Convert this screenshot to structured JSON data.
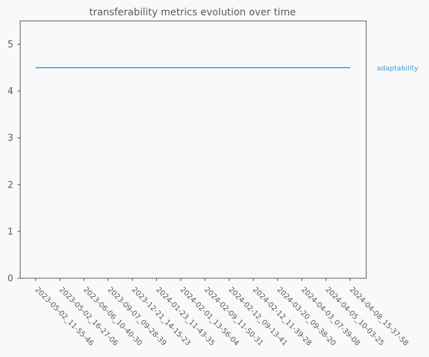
{
  "chart_data": {
    "type": "line",
    "title": "transferability metrics evolution over time",
    "xlabel": "",
    "ylabel": "",
    "ylim": [
      0,
      5.5
    ],
    "yticks": [
      0,
      1,
      2,
      3,
      4,
      5
    ],
    "grid": false,
    "legend_placement": "right",
    "x": [
      "2023-05-02_11-55-46",
      "2023-05-02_16-27-06",
      "2023-06-06_10-40-30",
      "2023-09-07_09-28-39",
      "2023-12-21_14-15-23",
      "2024-01-23_11-43-35",
      "2024-02-01_13-56-04",
      "2024-02-09_11-50-31",
      "2024-02-12_09-13-41",
      "2024-02-12_11-39-28",
      "2024-03-20_09-38-20",
      "2024-04-03_07-39-08",
      "2024-04-05_10-03-25",
      "2024-04-08_15-37-58"
    ],
    "series": [
      {
        "name": "adaptability",
        "color": "#3a9fd0",
        "values": [
          4.5,
          4.5,
          4.5,
          4.5,
          4.5,
          4.5,
          4.5,
          4.5,
          4.5,
          4.5,
          4.5,
          4.5,
          4.5,
          4.5
        ]
      }
    ],
    "colors": {
      "axis": "#4a5068",
      "text": "#555b66",
      "background": "#f9f9f9"
    }
  }
}
